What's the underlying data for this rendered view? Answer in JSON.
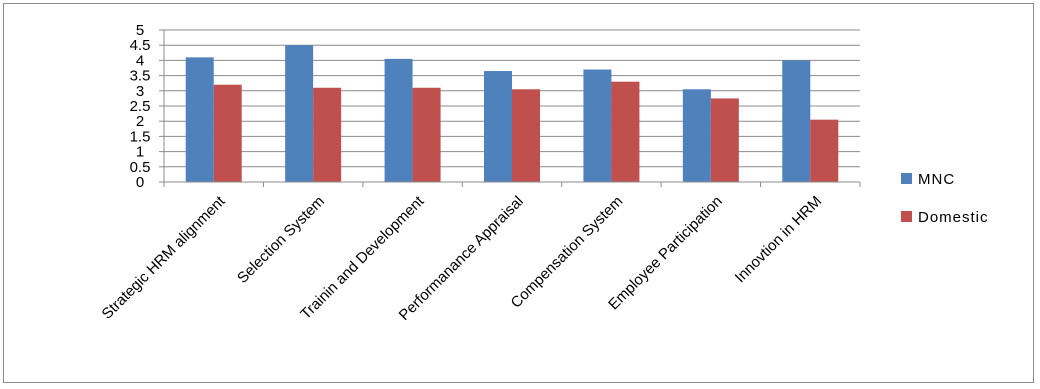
{
  "chart_data": {
    "type": "bar",
    "categories": [
      "Strategic HRM alignment",
      "Selection System",
      "Trainin and Development",
      "Performanance Appraisal",
      "Compensation System",
      "Employee Participation",
      "Innovtion in HRM"
    ],
    "series": [
      {
        "name": "MNC",
        "color": "#4f81bd",
        "values": [
          4.1,
          4.5,
          4.05,
          3.65,
          3.7,
          3.05,
          4.0
        ]
      },
      {
        "name": "Domestic",
        "color": "#c0504d",
        "values": [
          3.2,
          3.1,
          3.1,
          3.05,
          3.3,
          2.75,
          2.05
        ]
      }
    ],
    "yticks": [
      "0",
      "0.5",
      "1",
      "1.5",
      "2",
      "2.5",
      "3",
      "3.5",
      "4",
      "4.5",
      "5"
    ],
    "ylim": [
      0,
      5
    ],
    "grid": true,
    "legend_position": "right"
  }
}
